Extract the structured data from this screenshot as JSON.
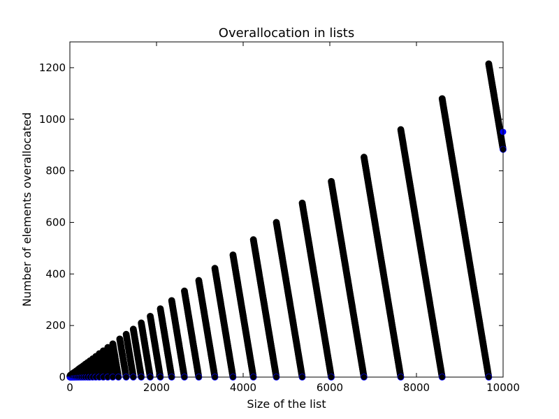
{
  "chart_data": {
    "type": "scatter",
    "title": "Overallocation in lists",
    "xlabel": "Size of the list",
    "ylabel": "Number of elements overallocated",
    "xlim": [
      0,
      10000
    ],
    "ylim": [
      0,
      1300
    ],
    "xticks": [
      0,
      2000,
      4000,
      6000,
      8000,
      10000
    ],
    "yticks": [
      0,
      200,
      400,
      600,
      800,
      1000,
      1200
    ],
    "grid": false,
    "legend": "none",
    "marker_color": "#000000",
    "marker_edge_color": "#0000ff",
    "series": [
      {
        "sawtooth_peaks": [
          {
            "x": 1151,
            "y": 148
          },
          {
            "x": 1300,
            "y": 166
          },
          {
            "x": 1464,
            "y": 186
          },
          {
            "x": 1648,
            "y": 210
          },
          {
            "x": 1855,
            "y": 236
          },
          {
            "x": 2088,
            "y": 265
          },
          {
            "x": 2350,
            "y": 297
          },
          {
            "x": 2644,
            "y": 334
          },
          {
            "x": 2975,
            "y": 375
          },
          {
            "x": 3347,
            "y": 422
          },
          {
            "x": 3765,
            "y": 474
          },
          {
            "x": 4236,
            "y": 533
          },
          {
            "x": 4766,
            "y": 600
          },
          {
            "x": 5363,
            "y": 675
          },
          {
            "x": 6034,
            "y": 759
          },
          {
            "x": 6789,
            "y": 853
          },
          {
            "x": 7638,
            "y": 960
          },
          {
            "x": 8593,
            "y": 1080
          },
          {
            "x": 9668,
            "y": 1215
          }
        ],
        "last_point": {
          "x": 10000,
          "y": 951
        }
      }
    ]
  }
}
